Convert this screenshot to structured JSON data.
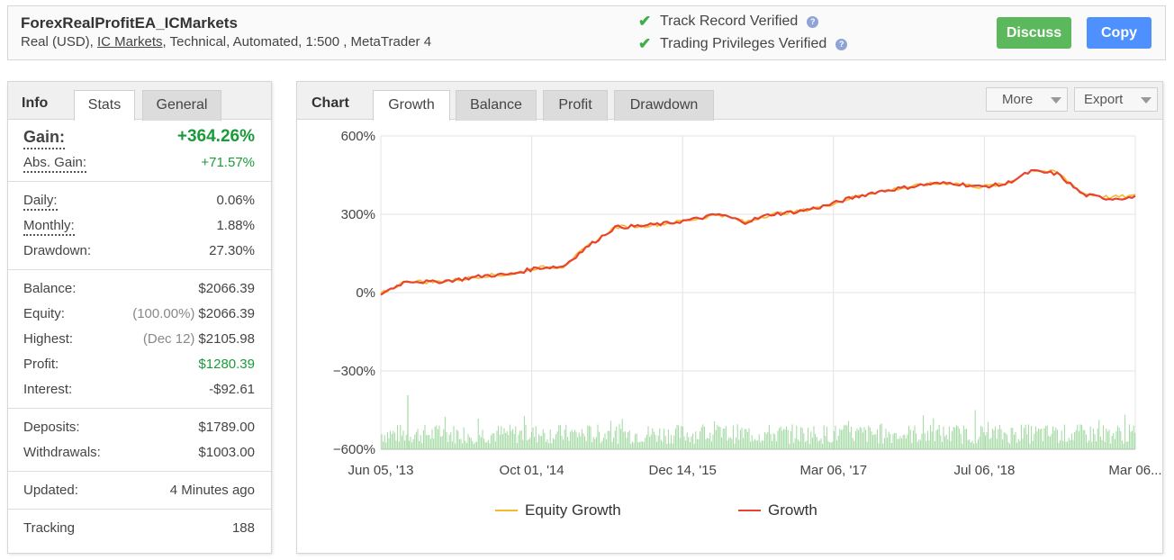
{
  "header": {
    "account_name": "ForexRealProfitEA_ICMarkets",
    "sub_prefix": "Real (USD), ",
    "broker": "IC Markets",
    "sub_suffix": ", Technical, Automated, 1:500 , MetaTrader 4",
    "verify_track": "Track Record Verified",
    "verify_privileges": "Trading Privileges Verified",
    "discuss_label": "Discuss",
    "copy_label": "Copy",
    "check_icon": "checkmark-icon",
    "help_icon": "question-icon"
  },
  "info_panel": {
    "title": "Info",
    "tabs": [
      "Stats",
      "General"
    ],
    "active_tab": "Stats",
    "rows": {
      "gain": {
        "label": "Gain:",
        "value": "+364.26%"
      },
      "abs_gain": {
        "label": "Abs. Gain:",
        "value": "+71.57%"
      },
      "daily": {
        "label": "Daily:",
        "value": "0.06%"
      },
      "monthly": {
        "label": "Monthly:",
        "value": "1.88%"
      },
      "drawdown": {
        "label": "Drawdown:",
        "value": "27.30%"
      },
      "balance": {
        "label": "Balance:",
        "value": "$2066.39"
      },
      "equity": {
        "label": "Equity:",
        "note": "(100.00%)",
        "value": "$2066.39"
      },
      "highest": {
        "label": "Highest:",
        "note": "(Dec 12)",
        "value": "$2105.98"
      },
      "profit": {
        "label": "Profit:",
        "value": "$1280.39"
      },
      "interest": {
        "label": "Interest:",
        "value": "-$92.61"
      },
      "deposits": {
        "label": "Deposits:",
        "value": "$1789.00"
      },
      "withdrawals": {
        "label": "Withdrawals:",
        "value": "$1003.00"
      },
      "updated": {
        "label": "Updated:",
        "value": "4 Minutes ago"
      },
      "tracking": {
        "label": "Tracking",
        "value": "188"
      }
    }
  },
  "chart_panel": {
    "title": "Chart",
    "tabs": [
      "Growth",
      "Balance",
      "Profit",
      "Drawdown"
    ],
    "active_tab": "Growth",
    "more_label": "More",
    "export_label": "Export"
  },
  "chart_data": {
    "type": "line",
    "title": "",
    "xlabel": "",
    "ylabel": "",
    "x_tick_labels": [
      "Jun 05, '13",
      "Oct 01, '14",
      "Dec 14, '15",
      "Mar 06, '17",
      "Jul 06, '18",
      "Mar 06..."
    ],
    "y_tick_labels": [
      "600%",
      "300%",
      "0%",
      "−300%",
      "−600%"
    ],
    "ylim": [
      -600,
      600
    ],
    "x": [
      "2013-06",
      "2013-09",
      "2013-12",
      "2014-03",
      "2014-06",
      "2014-09",
      "2014-10",
      "2014-12",
      "2015-02",
      "2015-04",
      "2015-06",
      "2015-08",
      "2015-10",
      "2015-12",
      "2016-01",
      "2016-03",
      "2016-05",
      "2016-07",
      "2016-10",
      "2016-12",
      "2017-03",
      "2017-06",
      "2017-09",
      "2017-12",
      "2018-03",
      "2018-07",
      "2018-09",
      "2018-11",
      "2019-01",
      "2019-03"
    ],
    "series": [
      {
        "name": "Equity Growth",
        "color": "#f5b92b",
        "values": [
          -5,
          45,
          40,
          50,
          65,
          70,
          95,
          100,
          180,
          250,
          255,
          265,
          280,
          300,
          270,
          300,
          310,
          330,
          360,
          385,
          400,
          415,
          420,
          405,
          415,
          470,
          460,
          380,
          365,
          370
        ]
      },
      {
        "name": "Growth",
        "color": "#e8432f",
        "values": [
          -5,
          45,
          40,
          50,
          65,
          70,
          95,
          100,
          180,
          250,
          255,
          265,
          280,
          300,
          270,
          300,
          310,
          330,
          360,
          385,
          400,
          415,
          420,
          405,
          415,
          465,
          455,
          375,
          360,
          365
        ]
      }
    ],
    "grid": true,
    "legend_position": "bottom"
  }
}
